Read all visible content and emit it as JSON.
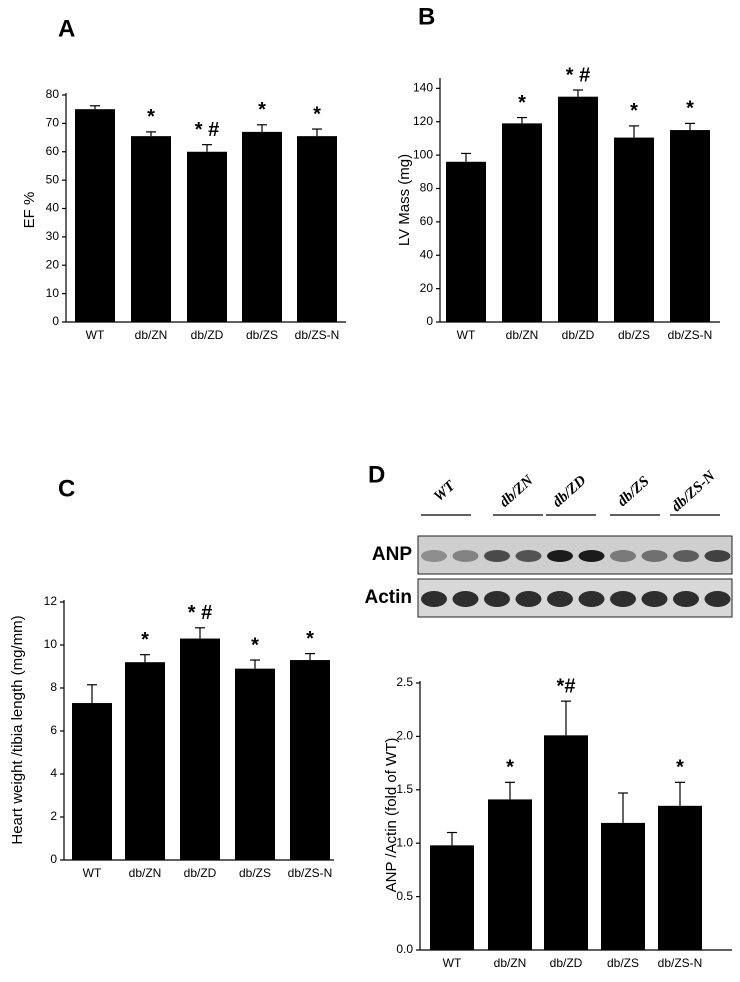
{
  "chart_data": [
    {
      "type": "bar",
      "label": "A",
      "ylabel": "EF   %",
      "categories": [
        "WT",
        "db/ZN",
        "db/ZD",
        "db/ZS",
        "db/ZS-N"
      ],
      "values": [
        75,
        65.5,
        60,
        67,
        65.5
      ],
      "errors": [
        1.2,
        1.5,
        2.5,
        2.5,
        2.5
      ],
      "annotations": [
        null,
        "*",
        "* #",
        "*",
        "*"
      ],
      "color": "#000000",
      "ylim": [
        0,
        80
      ],
      "yticks": [
        0,
        10,
        20,
        30,
        40,
        50,
        60,
        70,
        80
      ]
    },
    {
      "type": "bar",
      "label": "B",
      "ylabel": "LV  Mass (mg)",
      "categories": [
        "WT",
        "db/ZN",
        "db/ZD",
        "db/ZS",
        "db/ZS-N"
      ],
      "values": [
        96,
        119,
        135,
        110.5,
        115
      ],
      "errors": [
        5,
        3.5,
        4,
        7,
        4
      ],
      "annotations": [
        null,
        "*",
        "* #",
        "*",
        "*"
      ],
      "color": "#000000",
      "ylim": [
        0,
        145
      ],
      "yticks": [
        0,
        20,
        40,
        60,
        80,
        100,
        120,
        140
      ]
    },
    {
      "type": "bar",
      "label": "C",
      "ylabel": "Heart weight /tibia length (mg/mm)",
      "categories": [
        "WT",
        "db/ZN",
        "db/ZD",
        "db/ZS",
        "db/ZS-N"
      ],
      "values": [
        7.3,
        9.2,
        10.3,
        8.9,
        9.3
      ],
      "errors": [
        0.85,
        0.35,
        0.5,
        0.4,
        0.3
      ],
      "annotations": [
        null,
        "*",
        "* #",
        "*",
        "*"
      ],
      "color": "#000000",
      "ylim": [
        0,
        12
      ],
      "yticks": [
        0,
        2,
        4,
        6,
        8,
        10,
        12
      ]
    },
    {
      "type": "bar",
      "label": "D",
      "ylabel": "ANP /Actin (fold of WT)",
      "blot": {
        "groups": [
          "WT",
          "db/ZN",
          "db/ZD",
          "db/ZS",
          "db/ZS-N"
        ],
        "rows": [
          "ANP",
          "Actin"
        ]
      },
      "categories": [
        "WT",
        "db/ZN",
        "db/ZD",
        "db/ZS",
        "db/ZS-N"
      ],
      "values": [
        0.98,
        1.41,
        2.01,
        1.19,
        1.35
      ],
      "errors": [
        0.12,
        0.16,
        0.32,
        0.28,
        0.22
      ],
      "annotations": [
        null,
        "*",
        "*#",
        null,
        "*"
      ],
      "color": "#000000",
      "ylim": [
        0,
        2.5
      ],
      "yticks": [
        {
          "value": 0,
          "label": "0.0"
        },
        0.5,
        {
          "value": 1,
          "label": "1.0"
        },
        1.5,
        {
          "value": 2,
          "label": "2.0"
        },
        2.5
      ]
    }
  ]
}
